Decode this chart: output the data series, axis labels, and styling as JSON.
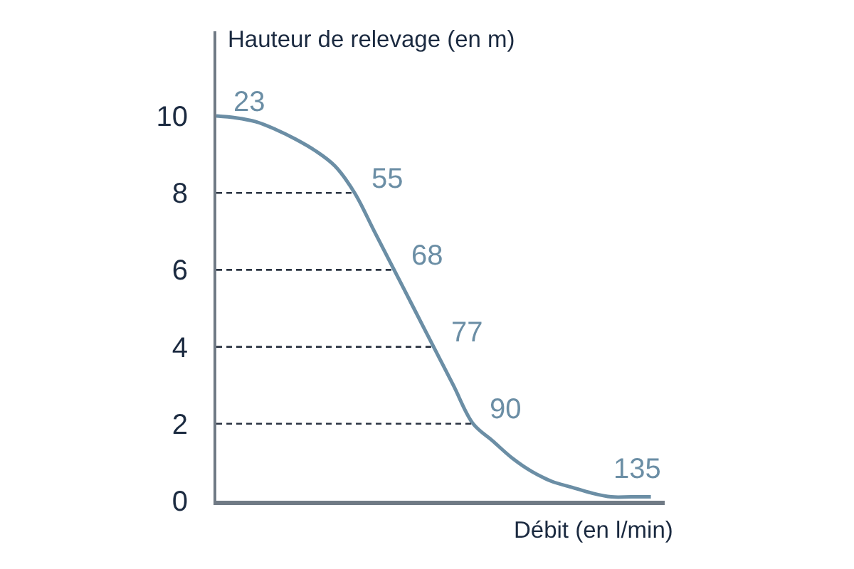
{
  "chart_data": {
    "type": "line",
    "ylabel": "Hauteur de relevage (en m)",
    "xlabel": "Débit (en l/min)",
    "categories": [
      null,
      null,
      null,
      null,
      null,
      null,
      null,
      null,
      null,
      null,
      null,
      null,
      null,
      null,
      null,
      null,
      null,
      null,
      null,
      null,
      null,
      null,
      null
    ],
    "series": [
      {
        "color": "#6b8ea5",
        "line_style": "solid",
        "values": [
          10,
          9.95,
          9.85,
          9.65,
          9.4,
          9.1,
          8.7,
          8,
          7,
          6,
          5,
          4,
          3,
          2,
          1.55,
          1.1,
          0.75,
          0.5,
          0.35,
          0.2,
          0.1,
          0.1,
          0.1
        ]
      },
      {
        "type": "line",
        "color": "#2b3442",
        "line_style": "dashed",
        "values": [
          8,
          8,
          8,
          8,
          8,
          8,
          8,
          8,
          null,
          null,
          null,
          null,
          null,
          null,
          null,
          null,
          null,
          null,
          null,
          null,
          null,
          null,
          null
        ]
      },
      {
        "type": "line",
        "color": "#2b3442",
        "line_style": "dashed",
        "values": [
          6,
          6,
          6,
          6,
          6,
          6,
          6,
          6,
          6,
          6,
          null,
          null,
          null,
          null,
          null,
          null,
          null,
          null,
          null,
          null,
          null,
          null,
          null
        ]
      },
      {
        "type": "line",
        "color": "#2b3442",
        "line_style": "dashed",
        "values": [
          4,
          4,
          4,
          4,
          4,
          4,
          4,
          4,
          4,
          4,
          4,
          4,
          null,
          null,
          null,
          null,
          null,
          null,
          null,
          null,
          null,
          null,
          null
        ]
      },
      {
        "type": "line",
        "color": "#2b3442",
        "line_style": "dashed",
        "values": [
          2,
          2,
          2,
          2,
          2,
          2,
          2,
          2,
          2,
          2,
          2,
          2,
          2,
          2,
          null,
          null,
          null,
          null,
          null,
          null,
          null,
          null,
          null
        ]
      }
    ],
    "annotations": [
      "23",
      "55",
      "68",
      "77",
      "90",
      "135"
    ],
    "ylim": [
      0,
      12.2
    ],
    "yticks": [
      0,
      2,
      4,
      6,
      8,
      10
    ],
    "tick_labels": "y",
    "grid": false,
    "marker": "none"
  }
}
